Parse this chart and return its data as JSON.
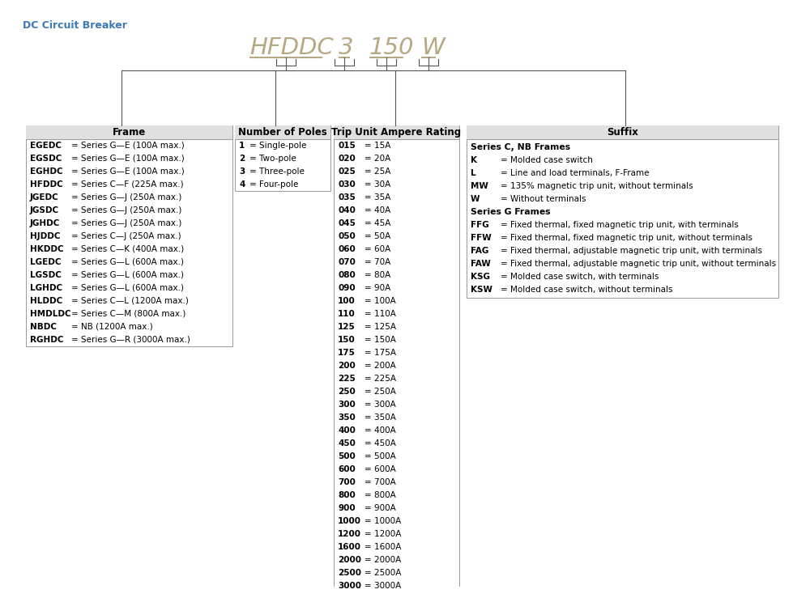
{
  "page_title": "DC Circuit Breaker",
  "page_title_color": "#3d7ab5",
  "title_segments": [
    "HFDDC",
    "3",
    "150",
    "W"
  ],
  "title_color": "#b5a882",
  "bg_color": "#ffffff",
  "border_color": "#999999",
  "header_bg": "#e0e0e0",
  "text_color": "#000000",
  "frame_header": "Frame",
  "frame_rows": [
    [
      "EGEDC",
      "= Series G—E (100A max.)"
    ],
    [
      "EGSDC",
      "= Series G—E (100A max.)"
    ],
    [
      "EGHDC",
      "= Series G—E (100A max.)"
    ],
    [
      "HFDDC",
      "= Series C—F (225A max.)"
    ],
    [
      "JGEDC",
      "= Series G—J (250A max.)"
    ],
    [
      "JGSDC",
      "= Series G—J (250A max.)"
    ],
    [
      "JGHDC",
      "= Series G—J (250A max.)"
    ],
    [
      "HJDDC",
      "= Series C—J (250A max.)"
    ],
    [
      "HKDDC",
      "= Series C—K (400A max.)"
    ],
    [
      "LGEDC",
      "= Series G—L (600A max.)"
    ],
    [
      "LGSDC",
      "= Series G—L (600A max.)"
    ],
    [
      "LGHDC",
      "= Series G—L (600A max.)"
    ],
    [
      "HLDDC",
      "= Series C—L (1200A max.)"
    ],
    [
      "HMDLDC",
      "= Series C—M (800A max.)"
    ],
    [
      "NBDC",
      "= NB (1200A max.)"
    ],
    [
      "RGHDC",
      "= Series G—R (3000A max.)"
    ]
  ],
  "poles_header": "Number of Poles",
  "poles_rows": [
    [
      "1",
      "= Single-pole"
    ],
    [
      "2",
      "= Two-pole"
    ],
    [
      "3",
      "= Three-pole"
    ],
    [
      "4",
      "= Four-pole"
    ]
  ],
  "ampere_header": "Trip Unit Ampere Rating",
  "ampere_rows": [
    [
      "015",
      "= 15A"
    ],
    [
      "020",
      "= 20A"
    ],
    [
      "025",
      "= 25A"
    ],
    [
      "030",
      "= 30A"
    ],
    [
      "035",
      "= 35A"
    ],
    [
      "040",
      "= 40A"
    ],
    [
      "045",
      "= 45A"
    ],
    [
      "050",
      "= 50A"
    ],
    [
      "060",
      "= 60A"
    ],
    [
      "070",
      "= 70A"
    ],
    [
      "080",
      "= 80A"
    ],
    [
      "090",
      "= 90A"
    ],
    [
      "100",
      "= 100A"
    ],
    [
      "110",
      "= 110A"
    ],
    [
      "125",
      "= 125A"
    ],
    [
      "150",
      "= 150A"
    ],
    [
      "175",
      "= 175A"
    ],
    [
      "200",
      "= 200A"
    ],
    [
      "225",
      "= 225A"
    ],
    [
      "250",
      "= 250A"
    ],
    [
      "300",
      "= 300A"
    ],
    [
      "350",
      "= 350A"
    ],
    [
      "400",
      "= 400A"
    ],
    [
      "450",
      "= 450A"
    ],
    [
      "500",
      "= 500A"
    ],
    [
      "600",
      "= 600A"
    ],
    [
      "700",
      "= 700A"
    ],
    [
      "800",
      "= 800A"
    ],
    [
      "900",
      "= 900A"
    ],
    [
      "1000",
      "= 1000A"
    ],
    [
      "1200",
      "= 1200A"
    ],
    [
      "1600",
      "= 1600A"
    ],
    [
      "2000",
      "= 2000A"
    ],
    [
      "2500",
      "= 2500A"
    ],
    [
      "3000",
      "= 3000A"
    ]
  ],
  "suffix_header": "Suffix",
  "suffix_section1_title": "Series C, NB Frames",
  "suffix_section1_rows": [
    [
      "K",
      "= Molded case switch"
    ],
    [
      "L",
      "= Line and load terminals, F-Frame"
    ],
    [
      "MW",
      "= 135% magnetic trip unit, without terminals"
    ],
    [
      "W",
      "= Without terminals"
    ]
  ],
  "suffix_section2_title": "Series G Frames",
  "suffix_section2_rows": [
    [
      "FFG",
      "= Fixed thermal, fixed magnetic trip unit, with terminals"
    ],
    [
      "FFW",
      "= Fixed thermal, fixed magnetic trip unit, without terminals"
    ],
    [
      "FAG",
      "= Fixed thermal, adjustable magnetic trip unit, with terminals"
    ],
    [
      "FAW",
      "= Fixed thermal, adjustable magnetic trip unit, without terminals"
    ],
    [
      "KSG",
      "= Molded case switch, with terminals"
    ],
    [
      "KSW",
      "= Molded case switch, without terminals"
    ]
  ]
}
